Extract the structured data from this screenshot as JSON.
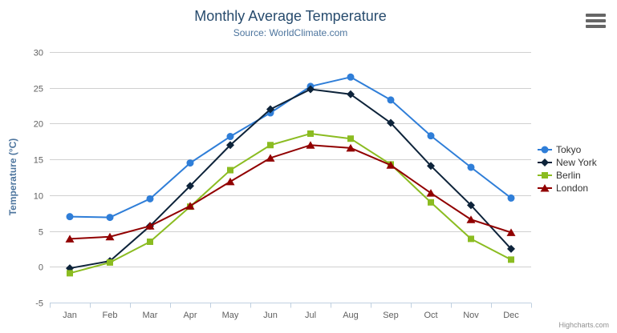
{
  "chart": {
    "title": "Monthly Average Temperature",
    "subtitle": "Source: WorldClimate.com",
    "y_axis_title": "Temperature (°C)",
    "credit": "Highcharts.com"
  },
  "chart_data": {
    "type": "line",
    "title": "Monthly Average Temperature",
    "subtitle": "Source: WorldClimate.com",
    "xlabel": "",
    "ylabel": "Temperature (°C)",
    "categories": [
      "Jan",
      "Feb",
      "Mar",
      "Apr",
      "May",
      "Jun",
      "Jul",
      "Aug",
      "Sep",
      "Oct",
      "Nov",
      "Dec"
    ],
    "series": [
      {
        "name": "Tokyo",
        "color": "#2f7ed8",
        "marker": "circle",
        "values": [
          7.0,
          6.9,
          9.5,
          14.5,
          18.2,
          21.5,
          25.2,
          26.5,
          23.3,
          18.3,
          13.9,
          9.6
        ]
      },
      {
        "name": "New York",
        "color": "#0d233a",
        "marker": "diamond",
        "values": [
          -0.2,
          0.8,
          5.7,
          11.3,
          17.0,
          22.0,
          24.8,
          24.1,
          20.1,
          14.1,
          8.6,
          2.5
        ]
      },
      {
        "name": "Berlin",
        "color": "#8bbc21",
        "marker": "square",
        "values": [
          -0.9,
          0.6,
          3.5,
          8.4,
          13.5,
          17.0,
          18.6,
          17.9,
          14.3,
          9.0,
          3.9,
          1.0
        ]
      },
      {
        "name": "London",
        "color": "#910000",
        "marker": "triangle",
        "values": [
          3.9,
          4.2,
          5.7,
          8.5,
          11.9,
          15.2,
          17.0,
          16.6,
          14.2,
          10.3,
          6.6,
          4.8
        ]
      }
    ],
    "ylim": [
      -5,
      30
    ],
    "ytick_step": 5,
    "grid": true,
    "legend_position": "right"
  },
  "colors": {
    "title": "#274b6d",
    "subtitle": "#4d759e",
    "axis_label": "#606060",
    "axis_title": "#4d759e",
    "gridline": "#d0d0d0",
    "axis_line": "#c0d0e0",
    "legend_text": "#333333",
    "credit": "#909090",
    "background": "#ffffff"
  }
}
